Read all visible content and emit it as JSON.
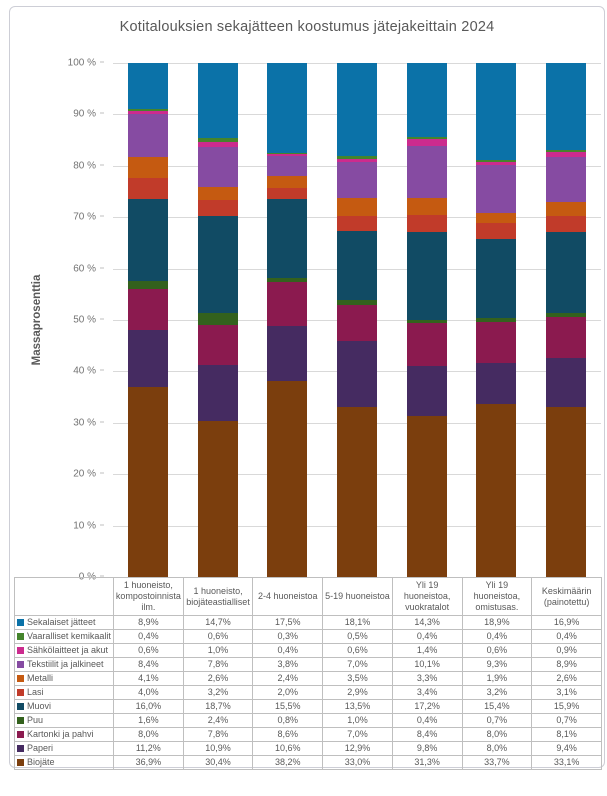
{
  "title": "Kotitalouksien sekajätteen koostumus jätejakeittain 2024",
  "chart_data": {
    "type": "bar",
    "variant": "stacked-100-percent",
    "title": "Kotitalouksien sekajätteen koostumus jätejakeittain 2024",
    "xlabel": "",
    "ylabel": "Massaprosenttia",
    "ylim": [
      0,
      100
    ],
    "grid": true,
    "gridline_color": "#d9d9d9",
    "legend_position": "table-left-column",
    "value_format": "comma-decimal-percent-1dp",
    "ytick_labels": [
      "100 %",
      "90 %",
      "80 %",
      "70 %",
      "60 %",
      "50 %",
      "40 %",
      "30 %",
      "20 %",
      "10 %",
      "0 %"
    ],
    "categories": [
      "1 huoneisto, kompostoinnista ilm.",
      "1 huoneisto, biojäteastialliset",
      "2-4 huoneistoa",
      "5-19 huoneistoa",
      "Yli 19 huoneistoa, vuokratalot",
      "Yli 19 huoneistoa, omistusas.",
      "Keskimäärin (painotettu)"
    ],
    "series": [
      {
        "name": "Sekalaiset jätteet",
        "color": "#0B72A8",
        "values": [
          8.9,
          14.7,
          17.5,
          18.1,
          14.3,
          18.9,
          16.9
        ]
      },
      {
        "name": "Vaaralliset kemikaalit",
        "color": "#44842C",
        "values": [
          0.4,
          0.6,
          0.3,
          0.5,
          0.4,
          0.4,
          0.4
        ]
      },
      {
        "name": "Sähkölaitteet ja akut",
        "color": "#CC2B8E",
        "values": [
          0.6,
          1.0,
          0.4,
          0.6,
          1.4,
          0.6,
          0.9
        ]
      },
      {
        "name": "Tekstiilit ja jalkineet",
        "color": "#864BA2",
        "values": [
          8.4,
          7.8,
          3.8,
          7.0,
          10.1,
          9.3,
          8.9
        ]
      },
      {
        "name": "Metalli",
        "color": "#C55A11",
        "values": [
          4.1,
          2.6,
          2.4,
          3.5,
          3.3,
          1.9,
          2.6
        ]
      },
      {
        "name": "Lasi",
        "color": "#C13B2A",
        "values": [
          4.0,
          3.2,
          2.0,
          2.9,
          3.4,
          3.2,
          3.1
        ]
      },
      {
        "name": "Muovi",
        "color": "#114B64",
        "values": [
          16.0,
          18.7,
          15.5,
          13.5,
          17.2,
          15.4,
          15.9
        ]
      },
      {
        "name": "Puu",
        "color": "#33611D",
        "values": [
          1.6,
          2.4,
          0.8,
          1.0,
          0.4,
          0.7,
          0.7
        ]
      },
      {
        "name": "Kartonki ja pahvi",
        "color": "#8B1A4F",
        "values": [
          8.0,
          7.8,
          8.6,
          7.0,
          8.4,
          8.0,
          8.1
        ]
      },
      {
        "name": "Paperi",
        "color": "#452B61",
        "values": [
          11.2,
          10.9,
          10.6,
          12.9,
          9.8,
          8.0,
          9.4
        ]
      },
      {
        "name": "Biojäte",
        "color": "#7B3E0D",
        "values": [
          36.9,
          30.4,
          38.2,
          33.0,
          31.3,
          33.7,
          33.1
        ]
      }
    ]
  }
}
